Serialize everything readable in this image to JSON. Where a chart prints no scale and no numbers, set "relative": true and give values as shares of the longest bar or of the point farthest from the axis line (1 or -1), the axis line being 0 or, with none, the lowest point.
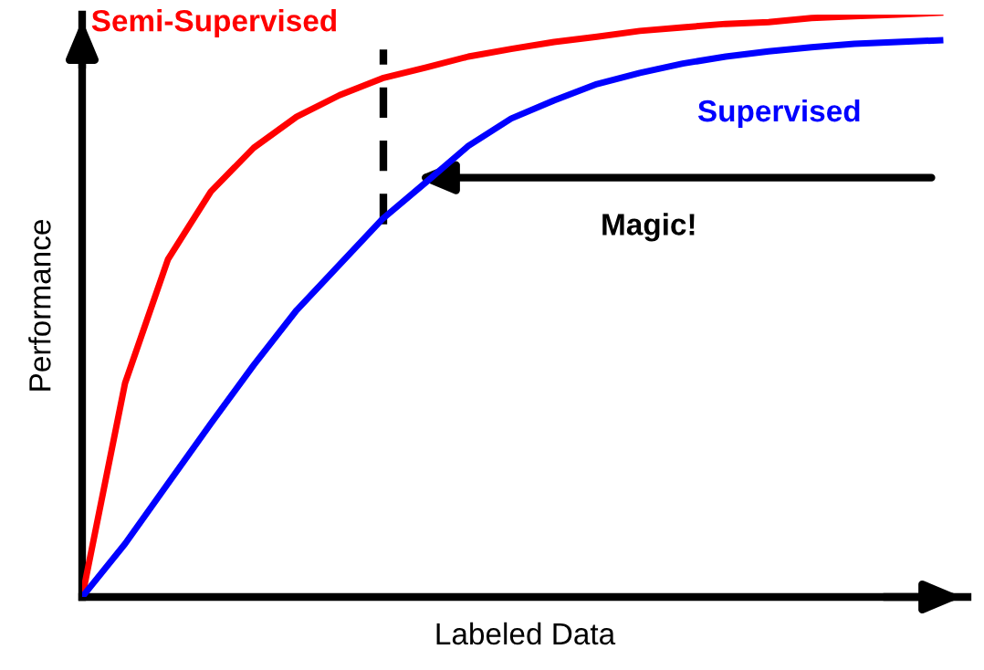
{
  "chart_data": {
    "type": "line",
    "relative": true,
    "xlabel": "Labeled Data",
    "ylabel": "Performance",
    "categories": [
      null,
      null,
      null,
      null,
      null,
      null,
      null,
      null,
      null,
      null,
      null,
      null,
      null,
      null,
      null,
      null,
      null,
      null,
      null,
      null,
      null
    ],
    "series": [
      {
        "name": "Semi-Supervised",
        "color": "#ff0000",
        "values": [
          0,
          0.366,
          0.578,
          0.694,
          0.769,
          0.822,
          0.859,
          0.888,
          0.906,
          0.925,
          0.938,
          0.95,
          0.959,
          0.969,
          0.975,
          0.981,
          0.984,
          0.991,
          0.994,
          0.997,
          1
        ]
      },
      {
        "name": "Supervised",
        "color": "#0000ff",
        "values": [
          0,
          0.091,
          0.194,
          0.297,
          0.397,
          0.491,
          0.569,
          0.647,
          0.709,
          0.772,
          0.819,
          0.85,
          0.878,
          0.897,
          0.913,
          0.925,
          0.934,
          0.941,
          0.947,
          0.95,
          0.953
        ]
      }
    ],
    "annotations": [
      "Magic!"
    ],
    "legend": false,
    "marker": "none",
    "line_style": "solid"
  }
}
